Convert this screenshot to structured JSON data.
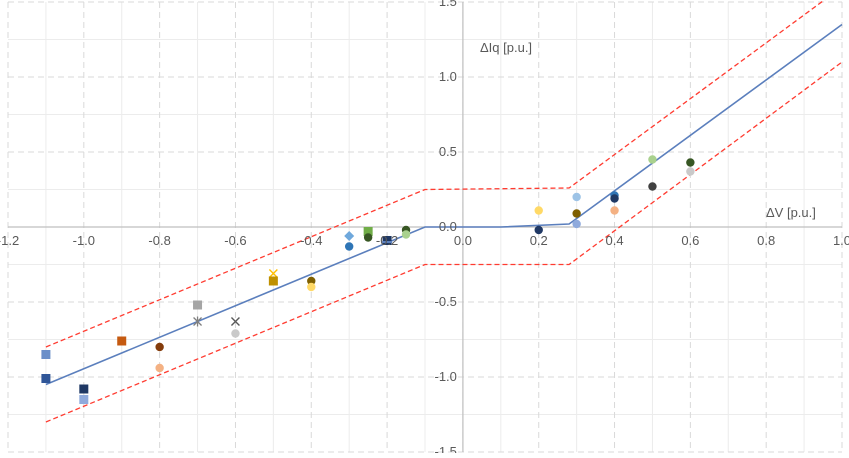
{
  "chart_data": {
    "type": "scatter",
    "title": "",
    "xlabel": "ΔV [p.u.]",
    "ylabel": "ΔIq [p.u.]",
    "xlim": [
      -1.2,
      1.0
    ],
    "ylim": [
      -1.5,
      1.5
    ],
    "x_ticks": [
      -1.2,
      -1.0,
      -0.8,
      -0.6,
      -0.4,
      -0.2,
      0.0,
      0.2,
      0.4,
      0.6,
      0.8,
      1.0
    ],
    "x_tick_labels": [
      "-1.2",
      "-1.0",
      "-0.8",
      "-0.6",
      "-0.4",
      "-0.2",
      "0.0",
      "0.2",
      "0.4",
      "0.6",
      "0.8",
      "1.0"
    ],
    "y_ticks": [
      -1.5,
      -1.0,
      -0.5,
      0.0,
      0.5,
      1.0,
      1.5
    ],
    "y_tick_labels": [
      "-1.5",
      "-1.0",
      "-0.5",
      "0.0",
      "0.5",
      "1.0",
      "1.5"
    ],
    "grid": true,
    "colors": {
      "reference_line": "#5b7fbd",
      "tolerance_band": "#ff3b30",
      "grid_major": "#d9d9d9",
      "grid_minor": "#ececec",
      "axis": "#bfbfbf"
    },
    "reference_curve": [
      {
        "x": -1.1,
        "y": -1.05
      },
      {
        "x": -0.1,
        "y": 0.0
      },
      {
        "x": 0.1,
        "y": 0.0
      },
      {
        "x": 0.28,
        "y": 0.02
      },
      {
        "x": 1.0,
        "y": 1.35
      }
    ],
    "tolerance_upper": [
      {
        "x": -1.1,
        "y": -0.8
      },
      {
        "x": -0.1,
        "y": 0.25
      },
      {
        "x": 0.28,
        "y": 0.26
      },
      {
        "x": 1.0,
        "y": 1.6
      }
    ],
    "tolerance_lower": [
      {
        "x": -1.1,
        "y": -1.3
      },
      {
        "x": -0.1,
        "y": -0.25
      },
      {
        "x": 0.28,
        "y": -0.25
      },
      {
        "x": 1.0,
        "y": 1.1
      }
    ],
    "points": [
      {
        "x": -1.1,
        "y": -0.85,
        "marker": "square",
        "color": "#6b8fc9"
      },
      {
        "x": -1.1,
        "y": -1.01,
        "marker": "square",
        "color": "#2f5597"
      },
      {
        "x": -1.0,
        "y": -1.08,
        "marker": "square",
        "color": "#1f3864"
      },
      {
        "x": -1.0,
        "y": -1.15,
        "marker": "square",
        "color": "#8faadc"
      },
      {
        "x": -0.9,
        "y": -0.76,
        "marker": "square",
        "color": "#c55a11"
      },
      {
        "x": -0.8,
        "y": -0.8,
        "marker": "circle",
        "color": "#843c0c"
      },
      {
        "x": -0.8,
        "y": -0.94,
        "marker": "circle",
        "color": "#f4b183"
      },
      {
        "x": -0.7,
        "y": -0.52,
        "marker": "square",
        "color": "#a5a5a5"
      },
      {
        "x": -0.7,
        "y": -0.63,
        "marker": "star",
        "color": "#7f7f7f"
      },
      {
        "x": -0.6,
        "y": -0.63,
        "marker": "x",
        "color": "#595959"
      },
      {
        "x": -0.6,
        "y": -0.71,
        "marker": "circle",
        "color": "#c9c9c9"
      },
      {
        "x": -0.5,
        "y": -0.31,
        "marker": "x",
        "color": "#ffc000"
      },
      {
        "x": -0.5,
        "y": -0.36,
        "marker": "square",
        "color": "#bf9000"
      },
      {
        "x": -0.4,
        "y": -0.36,
        "marker": "circle",
        "color": "#7f6000"
      },
      {
        "x": -0.4,
        "y": -0.4,
        "marker": "circle",
        "color": "#ffd966"
      },
      {
        "x": -0.3,
        "y": -0.06,
        "marker": "diamond",
        "color": "#6fa8dc"
      },
      {
        "x": -0.3,
        "y": -0.13,
        "marker": "circle",
        "color": "#2e75b6"
      },
      {
        "x": -0.25,
        "y": -0.03,
        "marker": "square",
        "color": "#70ad47"
      },
      {
        "x": -0.25,
        "y": -0.07,
        "marker": "circle",
        "color": "#375623"
      },
      {
        "x": -0.2,
        "y": -0.09,
        "marker": "square",
        "color": "#1f3864"
      },
      {
        "x": -0.2,
        "y": -0.1,
        "marker": "dash",
        "color": "#5b7fbd"
      },
      {
        "x": -0.15,
        "y": -0.02,
        "marker": "circle",
        "color": "#375623"
      },
      {
        "x": -0.15,
        "y": -0.05,
        "marker": "circle",
        "color": "#a9d18e"
      },
      {
        "x": 0.2,
        "y": 0.11,
        "marker": "circle",
        "color": "#ffd966"
      },
      {
        "x": 0.2,
        "y": -0.02,
        "marker": "circle",
        "color": "#203864"
      },
      {
        "x": 0.3,
        "y": 0.2,
        "marker": "circle",
        "color": "#9dc3e6"
      },
      {
        "x": 0.3,
        "y": 0.09,
        "marker": "circle",
        "color": "#7f6000"
      },
      {
        "x": 0.3,
        "y": 0.02,
        "marker": "circle",
        "color": "#8faadc"
      },
      {
        "x": 0.4,
        "y": 0.21,
        "marker": "circle",
        "color": "#2e75b6"
      },
      {
        "x": 0.4,
        "y": 0.19,
        "marker": "circle",
        "color": "#1f3864"
      },
      {
        "x": 0.4,
        "y": 0.11,
        "marker": "circle",
        "color": "#f4b183"
      },
      {
        "x": 0.5,
        "y": 0.45,
        "marker": "circle",
        "color": "#a9d18e"
      },
      {
        "x": 0.5,
        "y": 0.27,
        "marker": "circle",
        "color": "#404040"
      },
      {
        "x": 0.6,
        "y": 0.43,
        "marker": "circle",
        "color": "#375623"
      },
      {
        "x": 0.6,
        "y": 0.37,
        "marker": "circle",
        "color": "#c9c9c9"
      }
    ]
  }
}
